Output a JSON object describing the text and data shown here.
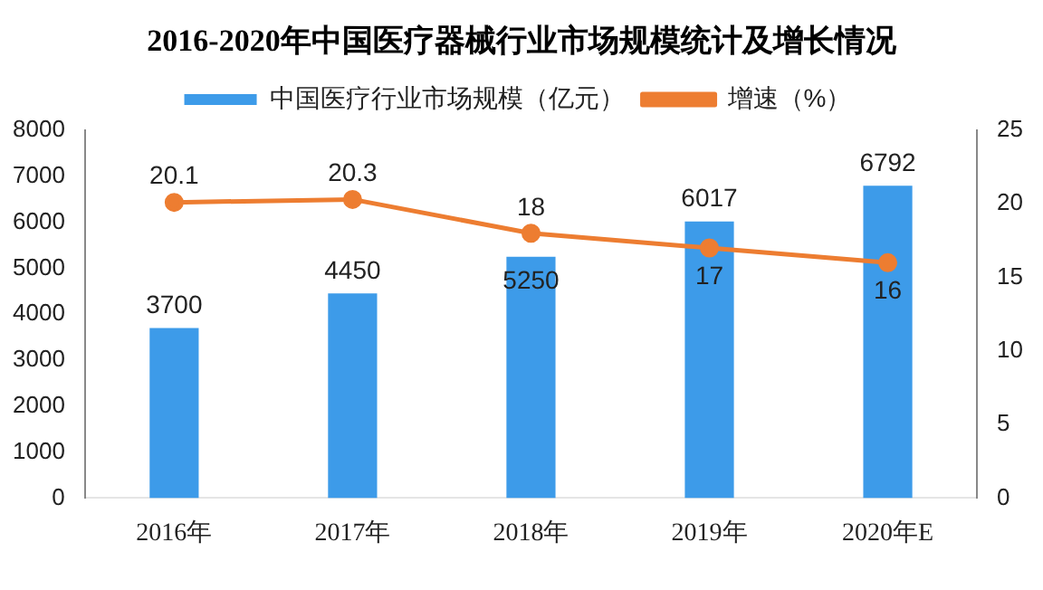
{
  "chart_data": {
    "type": "bar",
    "title": "2016-2020年中国医疗器械行业市场规模统计及增长情况",
    "categories": [
      "2016年",
      "2017年",
      "2018年",
      "2019年",
      "2020年E"
    ],
    "series": [
      {
        "name": "中国医疗行业市场规模（亿元）",
        "color": "#3d9be9",
        "values": [
          3700,
          4450,
          5250,
          6017,
          6792
        ]
      },
      {
        "name": "增速（%）",
        "type": "line",
        "axis": "y2",
        "color": "#ed7d31",
        "values": [
          20.1,
          20.3,
          18,
          17,
          16
        ]
      }
    ],
    "ylim": [
      0,
      8000
    ],
    "yticks": [
      0,
      1000,
      2000,
      3000,
      4000,
      5000,
      6000,
      7000,
      8000
    ],
    "y2lim": [
      0,
      25
    ],
    "y2ticks": [
      0,
      5,
      10,
      15,
      20,
      25
    ],
    "grid": false,
    "legend": "top",
    "marker": "circle",
    "line_style": "solid",
    "data_labels": true
  }
}
